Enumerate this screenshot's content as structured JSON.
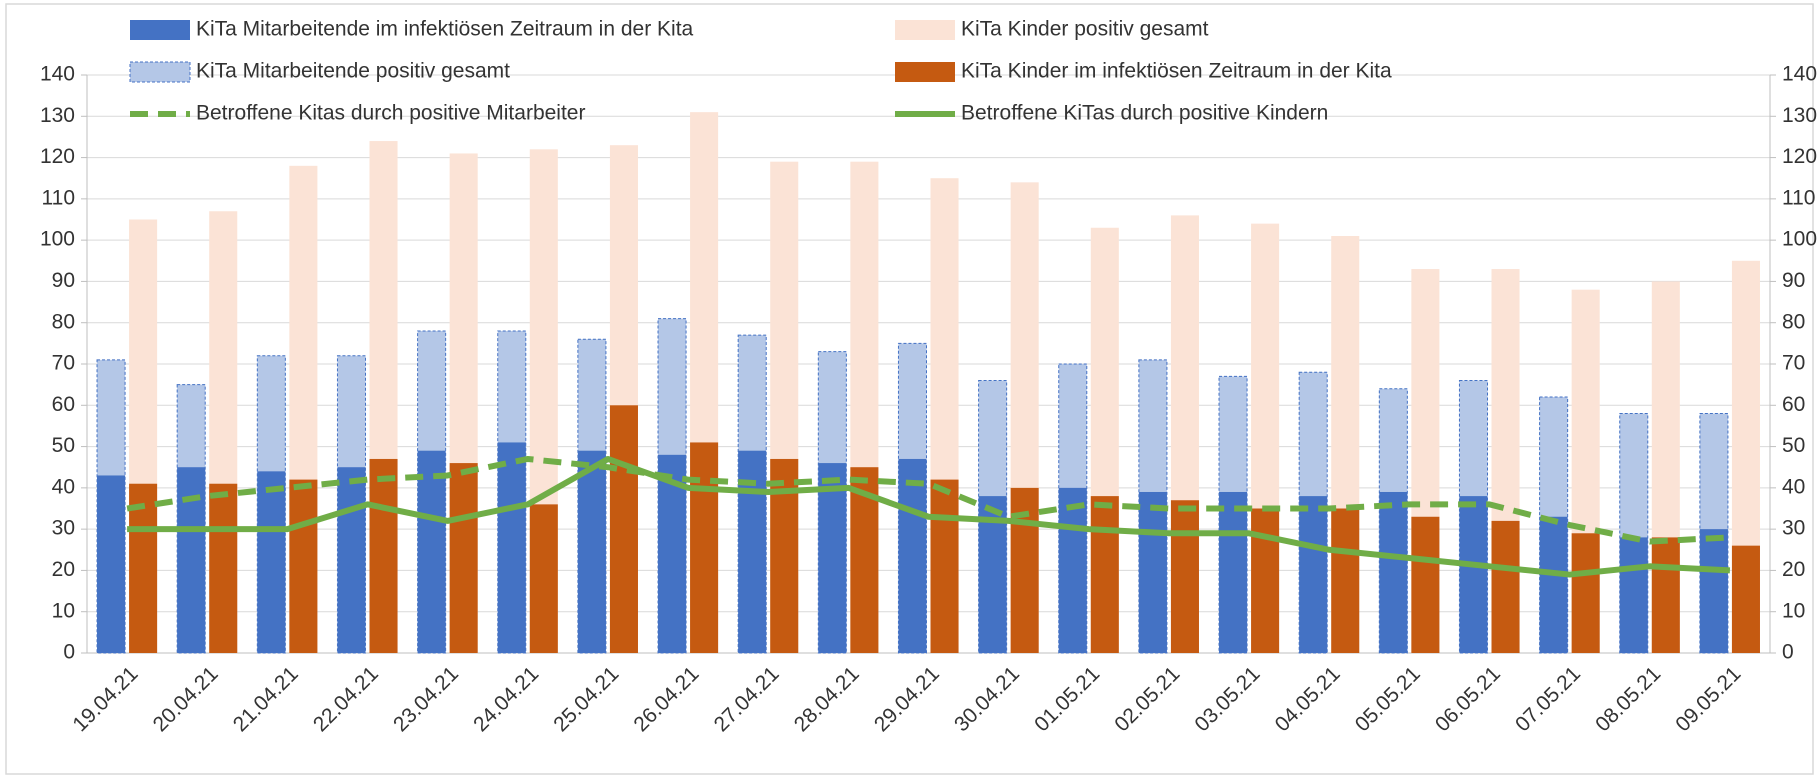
{
  "chart_data": {
    "type": "bar",
    "categories": [
      "19.04.21",
      "20.04.21",
      "21.04.21",
      "22.04.21",
      "23.04.21",
      "24.04.21",
      "25.04.21",
      "26.04.21",
      "27.04.21",
      "28.04.21",
      "29.04.21",
      "30.04.21",
      "01.05.21",
      "02.05.21",
      "03.05.21",
      "04.05.21",
      "05.05.21",
      "06.05.21",
      "07.05.21",
      "08.05.21",
      "09.05.21"
    ],
    "series": [
      {
        "name": "KiTa Mitarbeitende im infektiösen Zeitraum in der Kita",
        "type": "bar",
        "color": "#4472c4",
        "values": [
          43,
          45,
          44,
          45,
          49,
          51,
          49,
          48,
          49,
          46,
          47,
          38,
          40,
          39,
          39,
          38,
          39,
          38,
          33,
          28,
          30
        ]
      },
      {
        "name": "KiTa Kinder positiv gesamt",
        "type": "bar",
        "color": "#fbe3d6",
        "values": [
          105,
          107,
          118,
          124,
          121,
          122,
          123,
          131,
          119,
          119,
          115,
          114,
          103,
          106,
          104,
          101,
          93,
          93,
          88,
          90,
          95
        ]
      },
      {
        "name": "KiTa Mitarbeitende positiv gesamt",
        "type": "bar",
        "color": "#b4c7e7",
        "style": "dashed",
        "values": [
          71,
          65,
          72,
          72,
          78,
          78,
          76,
          81,
          77,
          73,
          75,
          66,
          70,
          71,
          67,
          68,
          64,
          66,
          62,
          58,
          58
        ]
      },
      {
        "name": "KiTa Kinder im infektiösen Zeitraum in der Kita",
        "type": "bar",
        "color": "#c55a11",
        "values": [
          41,
          41,
          42,
          47,
          46,
          36,
          60,
          51,
          47,
          45,
          42,
          40,
          38,
          37,
          35,
          35,
          33,
          32,
          29,
          28,
          26
        ]
      },
      {
        "name": "Betroffene Kitas durch positive Mitarbeiter",
        "type": "line",
        "color": "#70ad47",
        "style": "dashed",
        "axis": "y2",
        "values": [
          35,
          38,
          40,
          42,
          43,
          47,
          45,
          42,
          41,
          42,
          41,
          33,
          36,
          35,
          35,
          35,
          36,
          36,
          31,
          27,
          28
        ]
      },
      {
        "name": "Betroffene  KiTas durch positive Kindern",
        "type": "line",
        "color": "#70ad47",
        "axis": "y2",
        "values": [
          30,
          30,
          30,
          36,
          32,
          36,
          47,
          40,
          39,
          40,
          33,
          32,
          30,
          29,
          29,
          25,
          23,
          21,
          19,
          21,
          20
        ]
      }
    ],
    "ylim": [
      0,
      140
    ],
    "yticks": [
      0,
      10,
      20,
      30,
      40,
      50,
      60,
      70,
      80,
      90,
      100,
      110,
      120,
      130,
      140
    ],
    "y2lim": [
      0,
      140
    ],
    "y2ticks": [
      0,
      10,
      20,
      30,
      40,
      50,
      60,
      70,
      80,
      90,
      100,
      110,
      120,
      130,
      140
    ],
    "grid": true,
    "legend": "top"
  }
}
